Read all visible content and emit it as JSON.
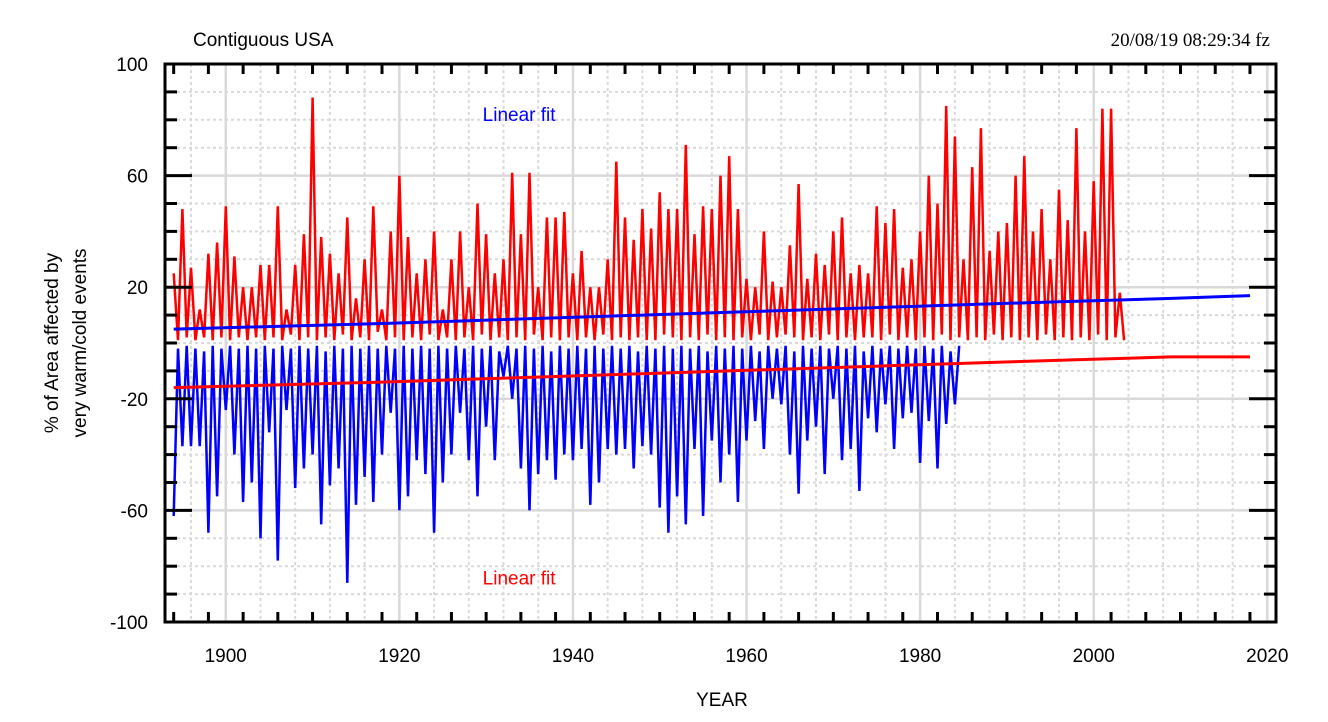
{
  "header": {
    "region": "Contiguous USA",
    "timestamp": "20/08/19  08:29:34 fz"
  },
  "chart_data": {
    "type": "line",
    "title": "Contiguous USA",
    "xlabel": "YEAR",
    "ylabel_line1": "% of Area affected by",
    "ylabel_line2": "very warm/cold events",
    "xlim": [
      1893,
      2021
    ],
    "ylim": [
      -100,
      100
    ],
    "x_ticks": [
      1900,
      1920,
      1940,
      1960,
      1980,
      2000,
      2020
    ],
    "x_tick_labels": [
      "1900",
      "1920",
      "1940",
      "1960",
      "1980",
      "2000",
      "2020"
    ],
    "y_ticks": [
      100,
      60,
      20,
      -20,
      -60,
      -100
    ],
    "y_tick_labels": [
      "100",
      "60",
      "20",
      "-20",
      "-60",
      "-100"
    ],
    "grid": true,
    "annotations": [
      {
        "text": "Linear fit",
        "color": "#0000ff",
        "x": 1929.6,
        "y": 82
      },
      {
        "text": "Linear fit",
        "color": "#ff0000",
        "x": 1929.6,
        "y": -84
      }
    ],
    "colors": {
      "warm": "#ff0000",
      "cold": "#0000ff"
    },
    "x_start": 1894.0,
    "x_step": 0.5,
    "series": [
      {
        "name": "Very warm area (%)",
        "color": "#ff0000",
        "values": [
          25,
          1,
          48,
          2,
          27,
          1,
          12,
          2,
          32,
          1,
          36,
          2,
          49,
          1,
          31,
          2,
          20,
          1,
          20,
          2,
          28,
          1,
          28,
          2,
          49,
          1,
          12,
          3,
          28,
          1,
          39,
          2,
          88,
          1,
          38,
          2,
          32,
          1,
          25,
          3,
          45,
          1,
          16,
          2,
          30,
          1,
          49,
          4,
          12,
          1,
          40,
          2,
          60,
          1,
          38,
          2,
          25,
          1,
          30,
          3,
          40,
          1,
          12,
          2,
          30,
          1,
          40,
          2,
          20,
          1,
          50,
          3,
          39,
          1,
          25,
          2,
          30,
          1,
          61,
          2,
          39,
          1,
          61,
          3,
          20,
          1,
          45,
          2,
          45,
          1,
          47,
          2,
          25,
          1,
          33,
          2,
          20,
          1,
          20,
          3,
          30,
          1,
          65,
          2,
          45,
          1,
          37,
          2,
          48,
          1,
          41,
          1,
          54,
          3,
          48,
          2,
          48,
          1,
          71,
          2,
          39,
          1,
          49,
          3,
          48,
          1,
          60,
          2,
          67,
          1,
          48,
          2,
          23,
          1,
          20,
          3,
          40,
          1,
          22,
          2,
          20,
          3,
          35,
          2,
          57,
          1,
          23,
          2,
          32,
          1,
          28,
          3,
          40,
          1,
          45,
          2,
          25,
          1,
          28,
          2,
          25,
          2,
          49,
          1,
          43,
          3,
          48,
          1,
          27,
          2,
          30,
          1,
          40,
          2,
          60,
          1,
          50,
          3,
          85,
          1,
          74,
          2,
          30,
          1,
          63,
          2,
          77,
          1,
          33,
          3,
          40,
          1,
          43,
          2,
          60,
          1,
          67,
          2,
          40,
          1,
          48,
          3,
          30,
          1,
          55,
          2,
          44,
          1,
          77,
          2,
          40,
          1,
          58,
          3,
          84,
          1,
          84,
          2,
          18,
          1
        ]
      },
      {
        "name": "Very cold area (%)",
        "color": "#0000ff",
        "values": [
          -62,
          -2,
          -37,
          -1,
          -37,
          -2,
          -37,
          -3,
          -68,
          -1,
          -55,
          -2,
          -24,
          -1,
          -40,
          -2,
          -57,
          -1,
          -50,
          -2,
          -70,
          -1,
          -32,
          -2,
          -78,
          -1,
          -24,
          -2,
          -52,
          -1,
          -45,
          -2,
          -40,
          -1,
          -65,
          -3,
          -51,
          -1,
          -45,
          -2,
          -86,
          -1,
          -58,
          -2,
          -48,
          -1,
          -57,
          -2,
          -40,
          -1,
          -25,
          -2,
          -60,
          -1,
          -55,
          -2,
          -42,
          -1,
          -47,
          -2,
          -68,
          -1,
          -50,
          -2,
          -40,
          -1,
          -25,
          -2,
          -42,
          -1,
          -55,
          -2,
          -30,
          -1,
          -42,
          -3,
          -12,
          -1,
          -20,
          -2,
          -45,
          -1,
          -60,
          -2,
          -47,
          -1,
          -42,
          -3,
          -49,
          -1,
          -40,
          -2,
          -42,
          -1,
          -38,
          -2,
          -58,
          -1,
          -50,
          -2,
          -38,
          -1,
          -40,
          -2,
          -38,
          -1,
          -45,
          -3,
          -37,
          -1,
          -40,
          -2,
          -59,
          -1,
          -68,
          -2,
          -55,
          -1,
          -65,
          -2,
          -38,
          -1,
          -62,
          -3,
          -35,
          -1,
          -50,
          -2,
          -40,
          -1,
          -57,
          -2,
          -35,
          -1,
          -28,
          -3,
          -38,
          -1,
          -20,
          -2,
          -22,
          -1,
          -40,
          -3,
          -54,
          -1,
          -35,
          -2,
          -30,
          -1,
          -47,
          -2,
          -20,
          -1,
          -42,
          -2,
          -38,
          -1,
          -53,
          -3,
          -27,
          -1,
          -32,
          -2,
          -22,
          -1,
          -38,
          -2,
          -27,
          -1,
          -25,
          -2,
          -43,
          -1,
          -28,
          -2,
          -45,
          -1,
          -29,
          -3,
          -22,
          -1
        ]
      },
      {
        "name": "Warm linear fit",
        "color": "#0000ff",
        "x": [
          1894,
          1918,
          1928,
          1938,
          1948,
          1958,
          1968,
          1978,
          1988,
          1998,
          2009,
          2018
        ],
        "values": [
          5,
          7,
          8,
          9,
          10,
          11,
          12,
          13,
          14,
          15,
          16,
          17
        ]
      },
      {
        "name": "Cold linear fit",
        "color": "#ff0000",
        "x": [
          1894,
          1918,
          1928,
          1938,
          1948,
          1958,
          1968,
          1978,
          1988,
          1998,
          2009,
          2018
        ],
        "values": [
          -16,
          -14,
          -13,
          -12,
          -11,
          -10,
          -9,
          -8,
          -7,
          -6,
          -5,
          -5
        ]
      }
    ]
  }
}
